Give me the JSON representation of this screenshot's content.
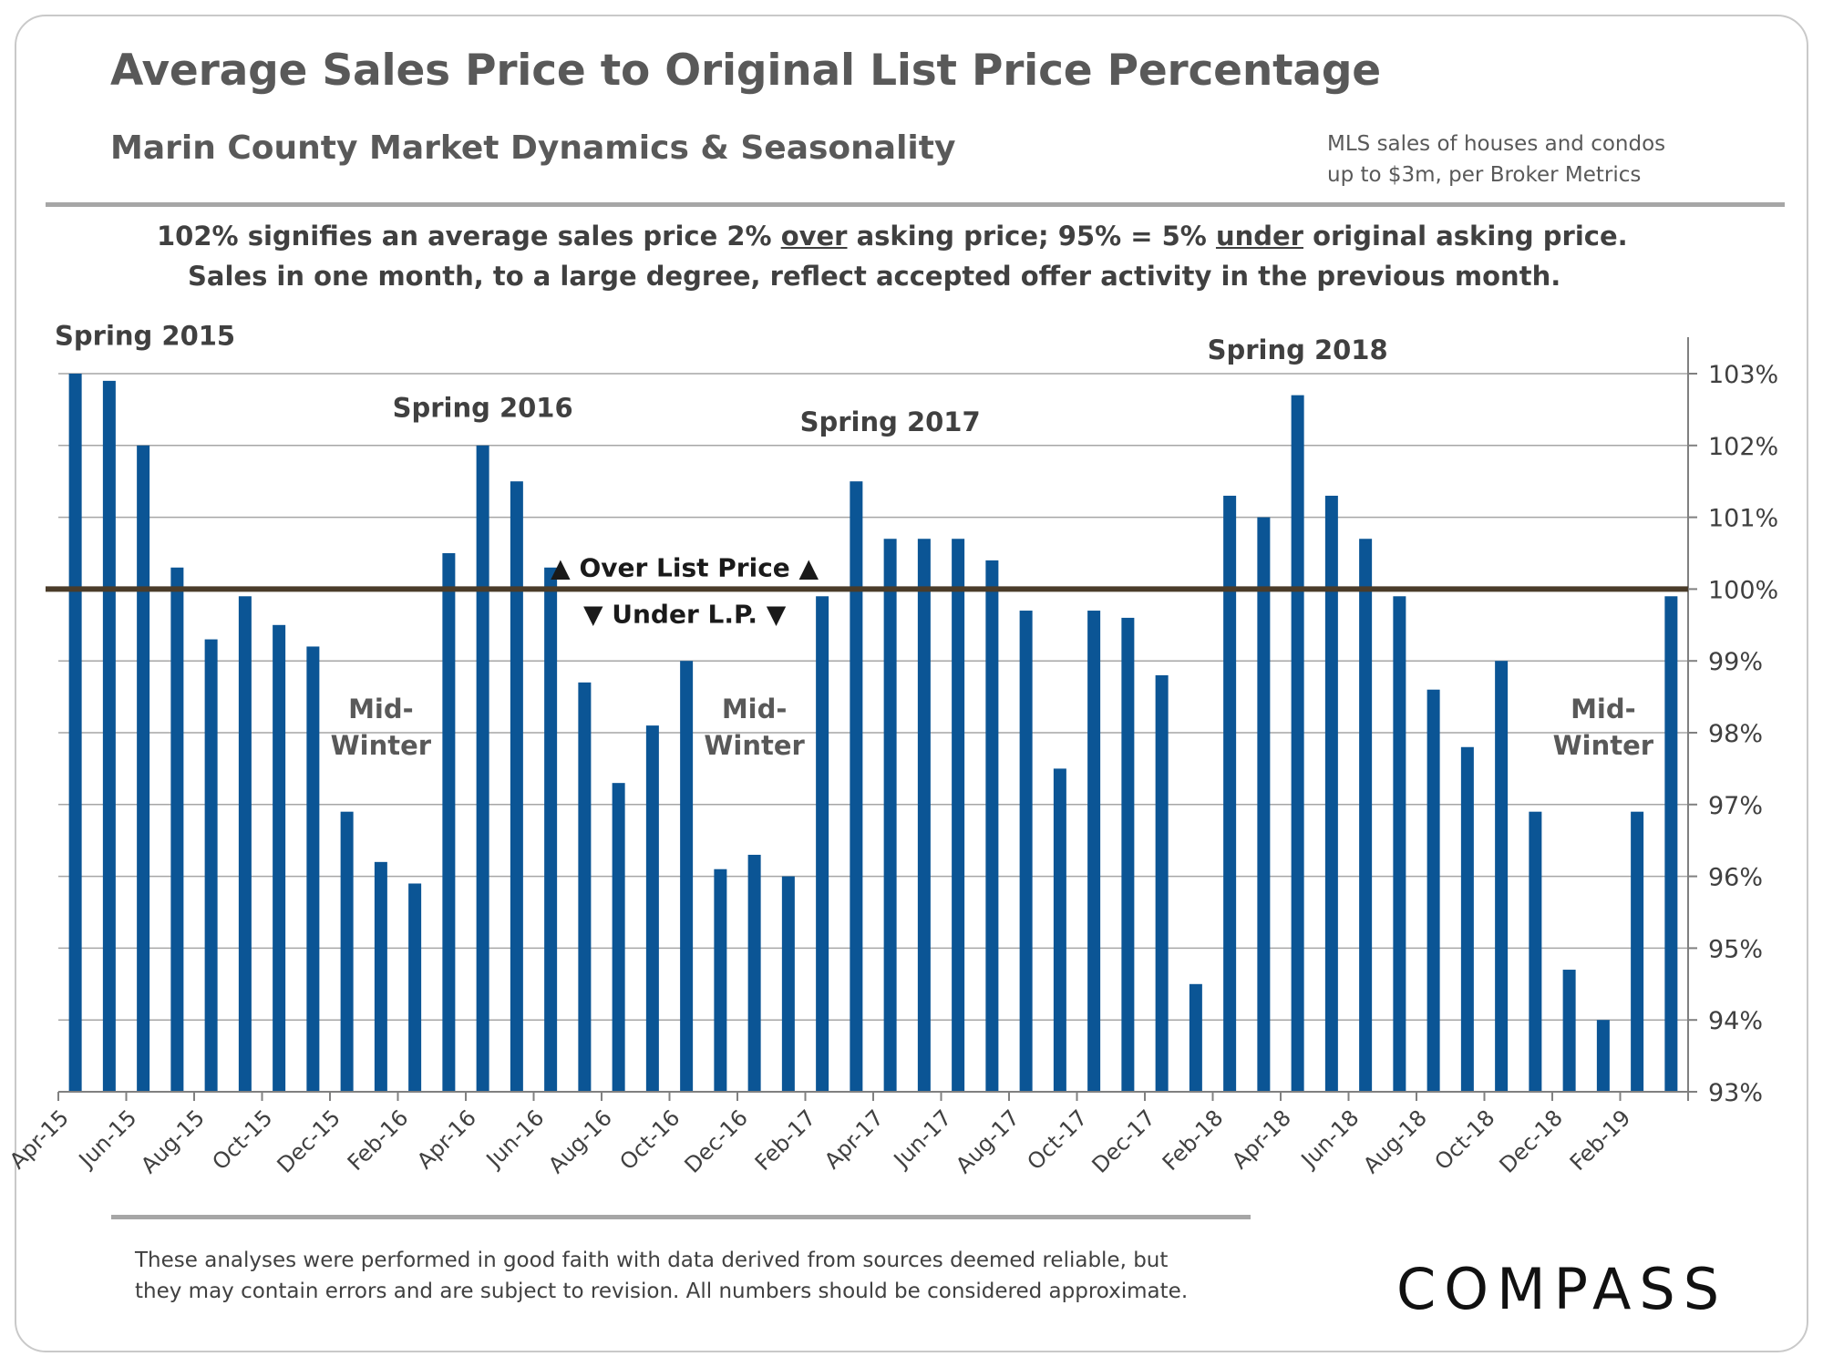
{
  "header": {
    "title": "Average Sales Price to Original List Price Percentage",
    "subtitle": "Marin County  Market  Dynamics  &  Seasonality",
    "source_line1": "MLS sales of houses and condos",
    "source_line2": "up to $3m, per Broker Metrics"
  },
  "notes": {
    "line1_a": "102% signifies an average sales price 2% ",
    "line1_over": "over",
    "line1_b": " asking price; 95% = 5% ",
    "line1_under": "under",
    "line1_c": " original  asking price.",
    "line2": "Sales in one month, to a large degree, reflect accepted offer activity  in the previous month."
  },
  "chart_data": {
    "type": "bar",
    "title": "Average Sales Price to Original List Price Percentage",
    "xlabel": "",
    "ylabel": "",
    "ylim": [
      93,
      103
    ],
    "y_ticks": [
      "93%",
      "94%",
      "95%",
      "96%",
      "97%",
      "98%",
      "99%",
      "100%",
      "101%",
      "102%",
      "103%"
    ],
    "y_axis_side": "right",
    "grid": true,
    "bar_color": "#0b5595",
    "reference_line": {
      "value": 100,
      "color": "#4a3c2a"
    },
    "categories": [
      "Apr-15",
      "May-15",
      "Jun-15",
      "Jul-15",
      "Aug-15",
      "Sep-15",
      "Oct-15",
      "Nov-15",
      "Dec-15",
      "Jan-16",
      "Feb-16",
      "Mar-16",
      "Apr-16",
      "May-16",
      "Jun-16",
      "Jul-16",
      "Aug-16",
      "Sep-16",
      "Oct-16",
      "Nov-16",
      "Dec-16",
      "Jan-17",
      "Feb-17",
      "Mar-17",
      "Apr-17",
      "May-17",
      "Jun-17",
      "Jul-17",
      "Aug-17",
      "Sep-17",
      "Oct-17",
      "Nov-17",
      "Dec-17",
      "Jan-18",
      "Feb-18",
      "Mar-18",
      "Apr-18",
      "May-18",
      "Jun-18",
      "Jul-18",
      "Aug-18",
      "Sep-18",
      "Oct-18",
      "Nov-18",
      "Dec-18",
      "Jan-19",
      "Feb-19",
      "Mar-19"
    ],
    "x_tick_labels": [
      "Apr-15",
      "Jun-15",
      "Aug-15",
      "Oct-15",
      "Dec-15",
      "Feb-16",
      "Apr-16",
      "Jun-16",
      "Aug-16",
      "Oct-16",
      "Dec-16",
      "Feb-17",
      "Apr-17",
      "Jun-17",
      "Aug-17",
      "Oct-17",
      "Dec-17",
      "Feb-18",
      "Apr-18",
      "Jun-18",
      "Aug-18",
      "Oct-18",
      "Dec-18",
      "Feb-19"
    ],
    "values": [
      103.0,
      102.9,
      102.0,
      100.3,
      99.3,
      99.9,
      99.5,
      99.2,
      96.9,
      96.2,
      95.9,
      100.5,
      102.0,
      101.5,
      100.3,
      98.7,
      97.3,
      98.1,
      99.0,
      96.1,
      96.3,
      96.0,
      99.9,
      101.5,
      100.7,
      100.7,
      100.7,
      100.4,
      99.7,
      97.5,
      99.7,
      99.6,
      98.8,
      94.5,
      101.3,
      101.0,
      102.7,
      101.3,
      100.7,
      99.9,
      98.6,
      97.8,
      99.0,
      96.9,
      94.7,
      94.0,
      96.9,
      99.9
    ],
    "annotations": [
      {
        "text": "Spring 2015",
        "at": "Apr-15",
        "level": 103.4
      },
      {
        "text": "Spring 2016",
        "at": "Apr-16",
        "level": 102.4
      },
      {
        "text": "Spring 2017",
        "at": "Apr-17",
        "level": 102.2
      },
      {
        "text": "Spring 2018",
        "at": "Apr-18",
        "level": 103.2
      },
      {
        "text": "Mid-",
        "text2": "Winter",
        "at": "Jan-16",
        "level": 98.0
      },
      {
        "text": "Mid-",
        "text2": "Winter",
        "at": "Dec-16",
        "level": 98.0
      },
      {
        "text": "Mid-",
        "text2": "Winter",
        "at": "Jan-19",
        "level": 98.0
      }
    ],
    "over_label": "▲ Over List Price ▲",
    "under_label": "▼ Under L.P. ▼"
  },
  "footer": {
    "disclaimer_line1": "These analyses were performed in good faith with data derived from sources deemed reliable, but",
    "disclaimer_line2": "they may contain  errors and are subject to revision.  All numbers should be considered  approximate.",
    "logo": "COMPASS"
  }
}
